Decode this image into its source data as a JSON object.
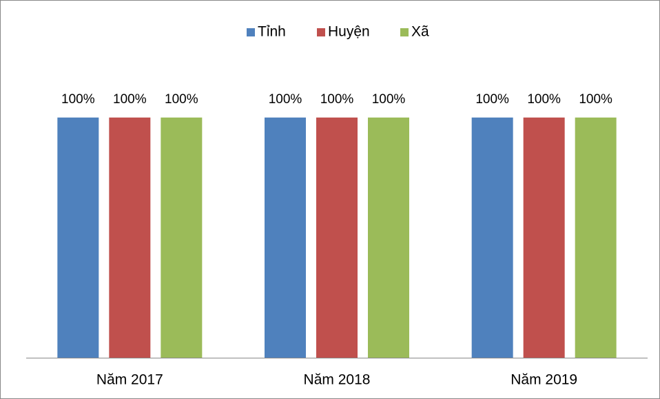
{
  "chart_data": {
    "type": "bar",
    "categories": [
      "Năm 2017",
      "Năm 2018",
      "Năm 2019"
    ],
    "series": [
      {
        "name": "Tỉnh",
        "color": "#4f81bd",
        "values": [
          100,
          100,
          100
        ],
        "value_labels": [
          "100%",
          "100%",
          "100%"
        ]
      },
      {
        "name": "Huyện",
        "color": "#c0504d",
        "values": [
          100,
          100,
          100
        ],
        "value_labels": [
          "100%",
          "100%",
          "100%"
        ]
      },
      {
        "name": "Xã",
        "color": "#9bbb59",
        "values": [
          100,
          100,
          100
        ],
        "value_labels": [
          "100%",
          "100%",
          "100%"
        ]
      }
    ],
    "ylim": [
      0,
      120
    ],
    "legend": "top"
  }
}
